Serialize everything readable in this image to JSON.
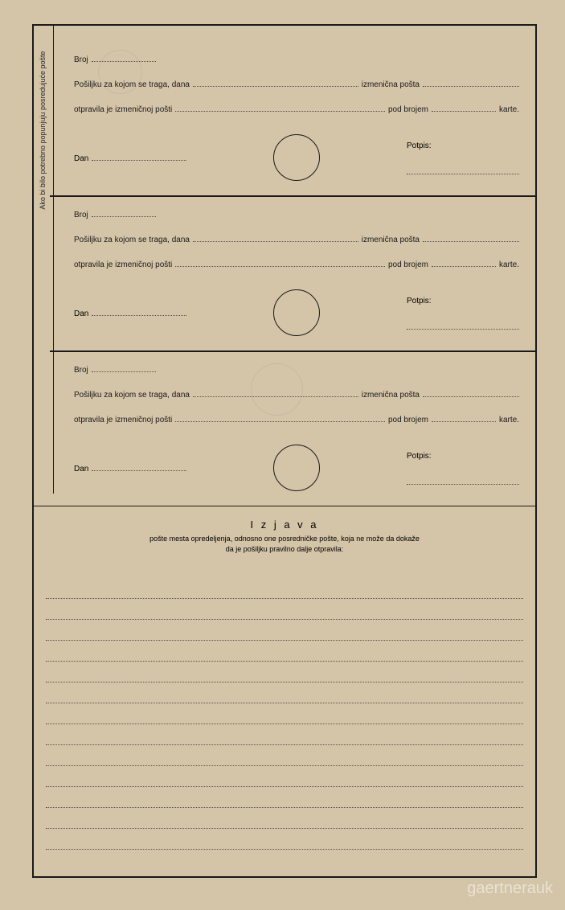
{
  "colors": {
    "paper": "#d4c4a8",
    "ink": "#1a1a1a",
    "dotted": "#555555"
  },
  "sideText": "Ako bi bilo potrebno popunjuju posredujuće pošte",
  "sections": {
    "broj": "Broj",
    "line2_a": "Pošiljku za kojom se traga, dana",
    "line2_b": "izmenična pošta",
    "line3_a": "otpravila je izmeničnoj pošti",
    "line3_b": "pod brojem",
    "line3_c": "karte.",
    "dan": "Dan",
    "potpis": "Potpis:"
  },
  "izjava": {
    "title": "I z j a v a",
    "subtitle1": "pošte mesta opredeljenja, odnosno one posredničke pošte, koja ne može da dokaže",
    "subtitle2": "da je pošiljku pravilno dalje otpravila:"
  },
  "watermark": "gaertnerauk",
  "writingLines": 13
}
